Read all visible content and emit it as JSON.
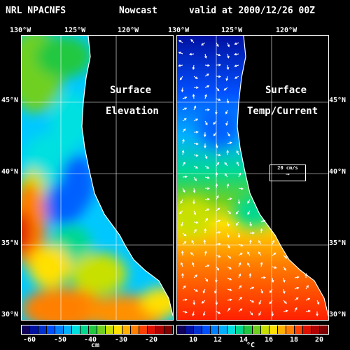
{
  "header": {
    "left": "NRL NPACNFS",
    "middle": "Nowcast",
    "right": "valid at 2000/12/26 00Z"
  },
  "lon_labels_left": [
    "130°W",
    "125°W",
    "120°W"
  ],
  "lon_labels_right": [
    "130°W",
    "125°W",
    "120°W"
  ],
  "lat_labels": [
    "45°N",
    "40°N",
    "35°N",
    "30°N"
  ],
  "panels": {
    "left": {
      "title_line1": "Surface",
      "title_line2": "Elevation"
    },
    "right": {
      "title_line1": "Surface",
      "title_line2": "Temp/Current"
    }
  },
  "scale_label": "20 cm/s",
  "colorbars": {
    "left": {
      "ticks": [
        "-60",
        "-50",
        "-40",
        "-30",
        "-20"
      ],
      "unit": "cm"
    },
    "right": {
      "ticks": [
        "10",
        "12",
        "14",
        "16",
        "18",
        "20"
      ],
      "unit": "°C"
    }
  },
  "colors": {
    "palette": [
      "#10005a",
      "#0010a0",
      "#0030d0",
      "#0050ff",
      "#0080ff",
      "#00b0ff",
      "#00e0e0",
      "#00d890",
      "#20c840",
      "#70d020",
      "#c8e000",
      "#ffe000",
      "#ffb000",
      "#ff8000",
      "#ff4000",
      "#e01000",
      "#b00000",
      "#800000"
    ]
  }
}
